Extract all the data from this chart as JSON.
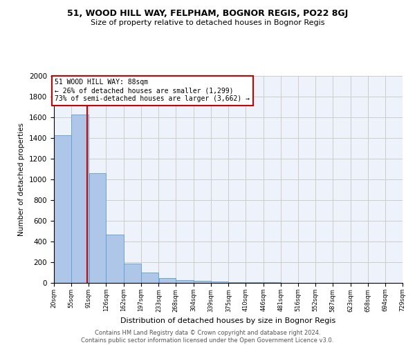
{
  "title": "51, WOOD HILL WAY, FELPHAM, BOGNOR REGIS, PO22 8GJ",
  "subtitle": "Size of property relative to detached houses in Bognor Regis",
  "xlabel": "Distribution of detached houses by size in Bognor Regis",
  "ylabel": "Number of detached properties",
  "property_size": 88,
  "property_label": "51 WOOD HILL WAY: 88sqm",
  "annotation_line1": "← 26% of detached houses are smaller (1,299)",
  "annotation_line2": "73% of semi-detached houses are larger (3,662) →",
  "footer_line1": "Contains HM Land Registry data © Crown copyright and database right 2024.",
  "footer_line2": "Contains public sector information licensed under the Open Government Licence v3.0.",
  "categories": [
    "20sqm",
    "55sqm",
    "91sqm",
    "126sqm",
    "162sqm",
    "197sqm",
    "233sqm",
    "268sqm",
    "304sqm",
    "339sqm",
    "375sqm",
    "410sqm",
    "446sqm",
    "481sqm",
    "516sqm",
    "552sqm",
    "587sqm",
    "623sqm",
    "658sqm",
    "694sqm",
    "729sqm"
  ],
  "bin_edges": [
    20,
    55,
    91,
    126,
    162,
    197,
    233,
    268,
    304,
    339,
    375,
    410,
    446,
    481,
    516,
    552,
    587,
    623,
    658,
    694,
    729
  ],
  "values": [
    1430,
    1630,
    1060,
    470,
    190,
    100,
    45,
    25,
    18,
    12,
    8,
    6,
    4,
    3,
    2,
    2,
    1,
    1,
    1,
    0,
    0
  ],
  "bar_color": "#aec6e8",
  "bar_edge_color": "#5a9fd4",
  "vline_color": "#cc0000",
  "annotation_box_color": "#cc0000",
  "ylim": [
    0,
    2000
  ],
  "yticks": [
    0,
    200,
    400,
    600,
    800,
    1000,
    1200,
    1400,
    1600,
    1800,
    2000
  ],
  "grid_color": "#cccccc",
  "bg_color": "#eef2fb"
}
